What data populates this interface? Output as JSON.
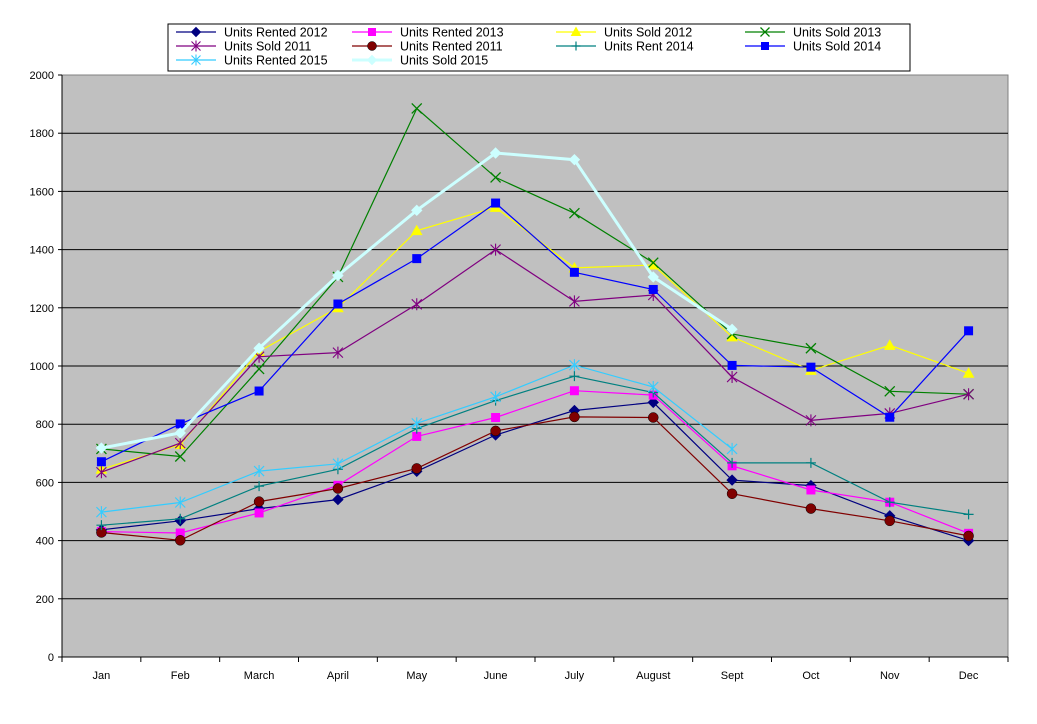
{
  "chart_data": {
    "type": "line",
    "title": "",
    "xlabel": "",
    "ylabel": "",
    "categories": [
      "Jan",
      "Feb",
      "March",
      "April",
      "May",
      "June",
      "July",
      "August",
      "Sept",
      "Oct",
      "Nov",
      "Dec"
    ],
    "ylim": [
      0,
      2000
    ],
    "yticks": [
      0,
      200,
      400,
      600,
      800,
      1000,
      1200,
      1400,
      1600,
      1800,
      2000
    ],
    "grid": "horizontal",
    "plot_background": "#c0c0c0",
    "legend_position": "top",
    "series": [
      {
        "name": "Units Rented 2012",
        "color": "#000080",
        "marker": "diamond",
        "values": [
          437,
          468,
          510,
          541,
          638,
          763,
          847,
          875,
          608,
          589,
          485,
          400
        ]
      },
      {
        "name": "Units Rented 2013",
        "color": "#ff00ff",
        "marker": "square",
        "values": [
          431,
          426,
          495,
          590,
          758,
          823,
          915,
          900,
          657,
          574,
          532,
          425
        ]
      },
      {
        "name": "Units Sold 2012",
        "color": "#ffff00",
        "marker": "triangle",
        "values": [
          645,
          730,
          1050,
          1200,
          1465,
          1545,
          1337,
          1347,
          1100,
          985,
          1071,
          975
        ]
      },
      {
        "name": "Units Sold 2013",
        "color": "#008000",
        "marker": "x",
        "values": [
          715,
          689,
          990,
          1306,
          1885,
          1648,
          1525,
          1355,
          1110,
          1061,
          913,
          903
        ]
      },
      {
        "name": "Units Sold 2011",
        "color": "#800080",
        "marker": "star",
        "values": [
          635,
          735,
          1032,
          1046,
          1212,
          1400,
          1222,
          1244,
          962,
          813,
          837,
          903
        ]
      },
      {
        "name": "Units Rented 2011",
        "color": "#800000",
        "marker": "circle",
        "values": [
          428,
          401,
          534,
          579,
          648,
          777,
          825,
          823,
          561,
          510,
          468,
          416
        ]
      },
      {
        "name": "Units Rent 2014",
        "color": "#008080",
        "marker": "plus",
        "values": [
          453,
          475,
          587,
          645,
          785,
          881,
          965,
          909,
          667,
          667,
          532,
          490
        ]
      },
      {
        "name": "Units Sold 2014",
        "color": "#0000ff",
        "marker": "square",
        "values": [
          671,
          801,
          914,
          1213,
          1369,
          1560,
          1322,
          1263,
          1002,
          996,
          824,
          1121
        ]
      },
      {
        "name": "Units Rented 2015",
        "color": "#33ccff",
        "marker": "star",
        "values": [
          498,
          531,
          639,
          664,
          803,
          894,
          1003,
          928,
          715,
          null,
          null,
          null
        ]
      },
      {
        "name": "Units Sold 2015",
        "color": "#ccffff",
        "marker": "diamond",
        "values": [
          718,
          770,
          1061,
          1311,
          1535,
          1732,
          1709,
          1306,
          1126,
          null,
          null,
          null
        ]
      }
    ]
  }
}
